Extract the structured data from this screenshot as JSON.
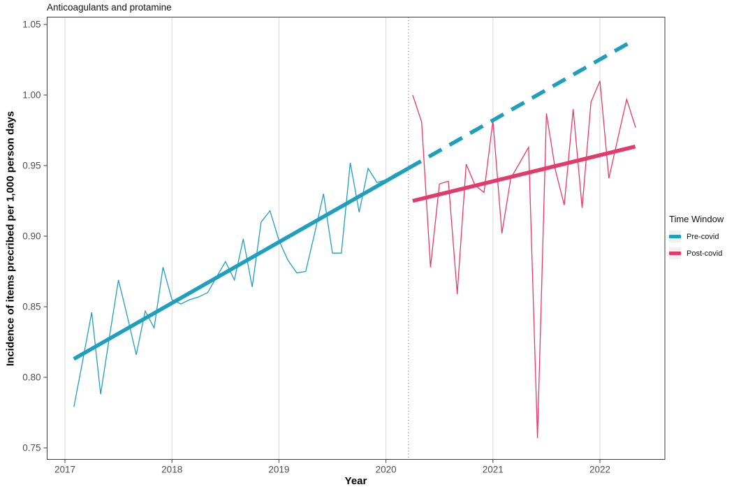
{
  "title": "Anticoagulants and protamine",
  "x_axis": {
    "label": "Year",
    "tick_labels": [
      "2017",
      "2018",
      "2019",
      "2020",
      "2021",
      "2022"
    ]
  },
  "y_axis": {
    "label": "Incidence of items precribed per 1,000 person days",
    "tick_labels": [
      "1.05",
      "1.00",
      "0.95",
      "0.90",
      "0.85",
      "0.80",
      "0.75"
    ]
  },
  "legend": {
    "title": "Time Window",
    "items": [
      {
        "label": "Pre-covid",
        "color": "#1E9FBE"
      },
      {
        "label": "Post-covid",
        "color": "#E23A6B"
      }
    ]
  },
  "colors": {
    "pre_covid": "#1E9FBE",
    "post_covid": "#E23A6B",
    "gridline": "#D9D9D9",
    "panel_border": "#3C3C3C",
    "tick_text": "#4D4D4D",
    "covid_cut_line": "#8C8C8C",
    "legend_key_bg": "#F0F0F0"
  },
  "chart_data": {
    "type": "line",
    "title": "Anticoagulants and protamine",
    "xlabel": "Year",
    "ylabel": "Incidence of items precribed per 1,000 person days",
    "ylim": [
      0.75,
      1.05
    ],
    "y_ticks": [
      1.05,
      1.0,
      0.95,
      0.9,
      0.85,
      0.8,
      0.75
    ],
    "x_ticks_years": [
      2017,
      2018,
      2019,
      2020,
      2021,
      2022
    ],
    "x_range_years": [
      2016.83,
      2022.61
    ],
    "gridlines": "vertical major only",
    "legend_position": "right",
    "interruption_line": {
      "style": "dotted",
      "x_year": 2020.21
    },
    "series": [
      {
        "name": "Pre-covid observed",
        "color": "#1E9FBE",
        "start": "2017-02",
        "frequency": "monthly",
        "monthly_values": [
          0.779,
          0.812,
          0.846,
          0.788,
          0.829,
          0.869,
          0.843,
          0.816,
          0.847,
          0.835,
          0.878,
          0.855,
          0.852,
          0.855,
          0.857,
          0.86,
          0.871,
          0.882,
          0.869,
          0.898,
          0.864,
          0.91,
          0.918,
          0.897,
          0.883,
          0.874,
          0.875,
          0.902,
          0.93,
          0.888,
          0.888,
          0.952,
          0.917,
          0.948,
          0.938,
          0.94,
          0.944,
          0.947
        ]
      },
      {
        "name": "Post-covid observed",
        "color": "#E23A6B",
        "start": "2020-04",
        "frequency": "monthly",
        "monthly_values": [
          1.0,
          0.981,
          0.878,
          0.937,
          0.939,
          0.859,
          0.951,
          0.936,
          0.931,
          0.982,
          0.902,
          0.941,
          0.952,
          0.963,
          0.757,
          0.987,
          0.947,
          0.922,
          0.99,
          0.92,
          0.995,
          1.01,
          0.941,
          0.969,
          0.997,
          0.977
        ]
      }
    ],
    "trend_lines": [
      {
        "name": "Pre-covid trend",
        "style": "solid",
        "color": "#1E9FBE",
        "x_years": [
          2017.083,
          2020.208
        ],
        "y_values": [
          0.813,
          0.948
        ]
      },
      {
        "name": "Pre-covid trend extrapolated",
        "style": "dashed",
        "color": "#1E9FBE",
        "x_years": [
          2020.208,
          2022.274
        ],
        "y_values": [
          0.948,
          1.037
        ]
      },
      {
        "name": "Post-covid trend",
        "style": "solid",
        "color": "#E23A6B",
        "x_years": [
          2020.25,
          2022.33
        ],
        "y_values": [
          0.925,
          0.9635
        ]
      }
    ]
  }
}
